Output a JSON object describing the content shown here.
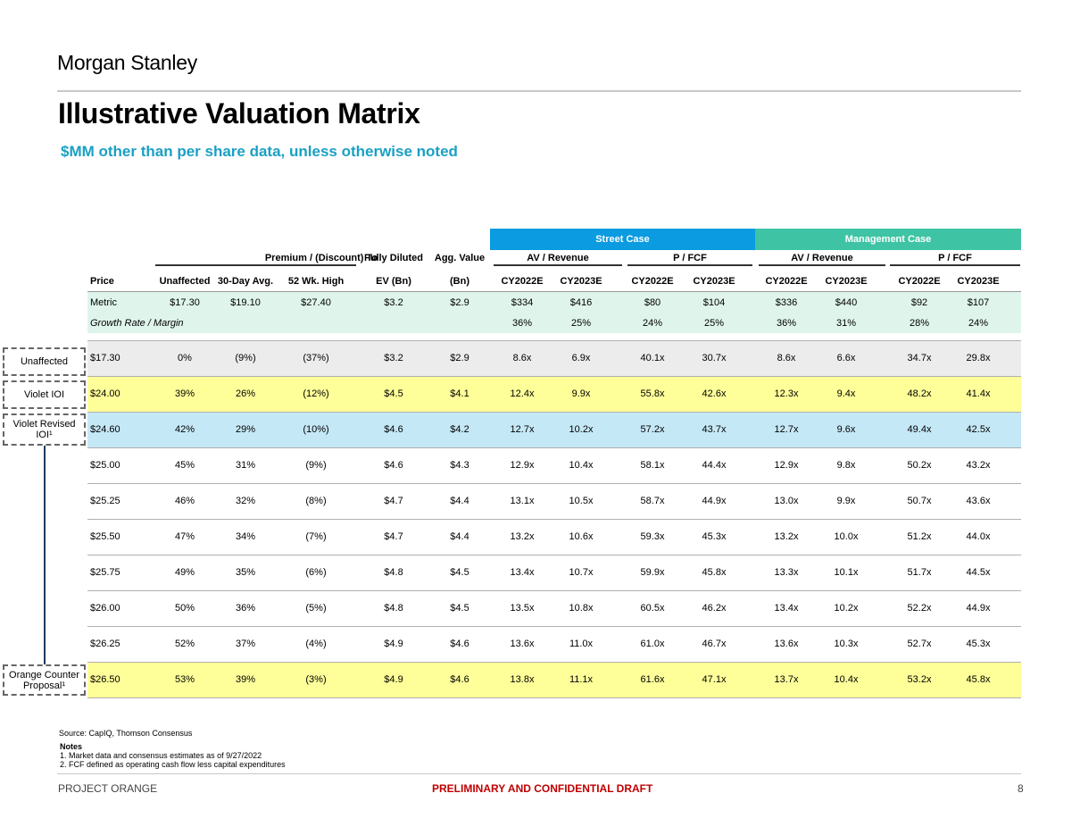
{
  "header": {
    "brand": "Morgan Stanley",
    "title": "Illustrative Valuation Matrix",
    "subtitle": "$MM other than per share data, unless otherwise noted"
  },
  "table": {
    "case_headers": {
      "street": "Street Case",
      "management": "Management Case"
    },
    "group_headers": {
      "premium": "Premium / (Discount) To",
      "fully_diluted": "Fully Diluted",
      "agg_value": "Agg. Value",
      "street_av_rev": "AV / Revenue",
      "street_p_fcf": "P / FCF",
      "mgmt_av_rev": "AV / Revenue",
      "mgmt_p_fcf": "P / FCF"
    },
    "columns": [
      "Price",
      "Unaffected",
      "30-Day Avg.",
      "52 Wk. High",
      "EV (Bn)",
      "(Bn)",
      "CY2022E",
      "CY2023E",
      "CY2022E",
      "CY2023E",
      "CY2022E",
      "CY2023E",
      "CY2022E",
      "CY2023E"
    ],
    "metric_row": [
      "Metric",
      "$17.30",
      "$19.10",
      "$27.40",
      "$3.2",
      "$2.9",
      "$334",
      "$416",
      "$80",
      "$104",
      "$336",
      "$440",
      "$92",
      "$107"
    ],
    "growth_row": [
      "Growth Rate / Margin",
      "",
      "",
      "",
      "",
      "",
      "36%",
      "25%",
      "24%",
      "25%",
      "36%",
      "31%",
      "28%",
      "24%"
    ],
    "rows": [
      [
        "$17.30",
        "0%",
        "(9%)",
        "(37%)",
        "$3.2",
        "$2.9",
        "8.6x",
        "6.9x",
        "40.1x",
        "30.7x",
        "8.6x",
        "6.6x",
        "34.7x",
        "29.8x"
      ],
      [
        "$24.00",
        "39%",
        "26%",
        "(12%)",
        "$4.5",
        "$4.1",
        "12.4x",
        "9.9x",
        "55.8x",
        "42.6x",
        "12.3x",
        "9.4x",
        "48.2x",
        "41.4x"
      ],
      [
        "$24.60",
        "42%",
        "29%",
        "(10%)",
        "$4.6",
        "$4.2",
        "12.7x",
        "10.2x",
        "57.2x",
        "43.7x",
        "12.7x",
        "9.6x",
        "49.4x",
        "42.5x"
      ],
      [
        "$25.00",
        "45%",
        "31%",
        "(9%)",
        "$4.6",
        "$4.3",
        "12.9x",
        "10.4x",
        "58.1x",
        "44.4x",
        "12.9x",
        "9.8x",
        "50.2x",
        "43.2x"
      ],
      [
        "$25.25",
        "46%",
        "32%",
        "(8%)",
        "$4.7",
        "$4.4",
        "13.1x",
        "10.5x",
        "58.7x",
        "44.9x",
        "13.0x",
        "9.9x",
        "50.7x",
        "43.6x"
      ],
      [
        "$25.50",
        "47%",
        "34%",
        "(7%)",
        "$4.7",
        "$4.4",
        "13.2x",
        "10.6x",
        "59.3x",
        "45.3x",
        "13.2x",
        "10.0x",
        "51.2x",
        "44.0x"
      ],
      [
        "$25.75",
        "49%",
        "35%",
        "(6%)",
        "$4.8",
        "$4.5",
        "13.4x",
        "10.7x",
        "59.9x",
        "45.8x",
        "13.3x",
        "10.1x",
        "51.7x",
        "44.5x"
      ],
      [
        "$26.00",
        "50%",
        "36%",
        "(5%)",
        "$4.8",
        "$4.5",
        "13.5x",
        "10.8x",
        "60.5x",
        "46.2x",
        "13.4x",
        "10.2x",
        "52.2x",
        "44.9x"
      ],
      [
        "$26.25",
        "52%",
        "37%",
        "(4%)",
        "$4.9",
        "$4.6",
        "13.6x",
        "11.0x",
        "61.0x",
        "46.7x",
        "13.6x",
        "10.3x",
        "52.7x",
        "45.3x"
      ],
      [
        "$26.50",
        "53%",
        "39%",
        "(3%)",
        "$4.9",
        "$4.6",
        "13.8x",
        "11.1x",
        "61.6x",
        "47.1x",
        "13.7x",
        "10.4x",
        "53.2x",
        "45.8x"
      ]
    ]
  },
  "callouts": {
    "unaffected": "Unaffected",
    "violet_ioi": "Violet IOI",
    "violet_revised_line1": "Violet Revised",
    "violet_revised_line2": "IOI¹",
    "orange_line1": "Orange Counter",
    "orange_line2": "Proposal¹"
  },
  "footer": {
    "source": "Source: CapIQ, Thomson Consensus",
    "notes_title": "Notes",
    "note1": "1.  Market data and consensus estimates as of 9/27/2022",
    "note2": "2.  FCF defined as operating cash flow less capital expenditures",
    "project": "PROJECT ORANGE",
    "draft": "PRELIMINARY AND CONFIDENTIAL DRAFT",
    "page": "8"
  },
  "colors": {
    "street_case": "#0a9be0",
    "management_case": "#3ec4a4",
    "metric_band": "#dff5ec",
    "unaffected_band": "#ececec",
    "violet_band": "#ffff99",
    "revised_band": "#c5e8f7",
    "orange_band": "#ffff99"
  }
}
